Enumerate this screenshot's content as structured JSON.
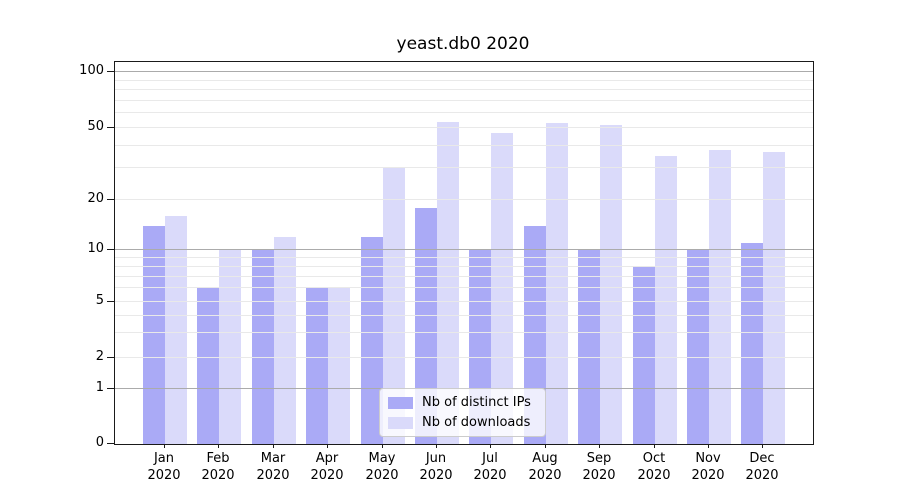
{
  "title": "yeast.db0 2020",
  "colors": {
    "bar_distinct_ips": "#aaaaf6",
    "bar_downloads": "#dadafa",
    "grid_major": "#ababab",
    "grid_minor": "#e9e9e9",
    "axis": "#1a1a1a",
    "legend_border": "#cccccc"
  },
  "chart_data": {
    "type": "bar",
    "title": "yeast.db0 2020",
    "categories": [
      "Jan 2020",
      "Feb 2020",
      "Mar 2020",
      "Apr 2020",
      "May 2020",
      "Jun 2020",
      "Jul 2020",
      "Aug 2020",
      "Sep 2020",
      "Oct 2020",
      "Nov 2020",
      "Dec 2020"
    ],
    "series": [
      {
        "name": "Nb of distinct IPs",
        "color": "#aaaaf6",
        "values": [
          14,
          6,
          10,
          6,
          12,
          18,
          10,
          14,
          10,
          8,
          10,
          11
        ]
      },
      {
        "name": "Nb of downloads",
        "color": "#dadafa",
        "values": [
          16,
          10,
          12,
          6,
          30,
          54,
          47,
          53,
          52,
          35,
          38,
          37
        ]
      }
    ],
    "xlabel": "",
    "ylabel": "",
    "y_ticks": [
      0,
      1,
      2,
      5,
      10,
      20,
      50,
      100
    ],
    "y_gridlines_major": [
      1,
      10,
      100
    ],
    "y_gridlines_minor": [
      2,
      3,
      4,
      5,
      6,
      7,
      8,
      9,
      20,
      30,
      40,
      50,
      60,
      70,
      80,
      90
    ],
    "y_scale": "quasi-log (symlog-like) with 0 at baseline",
    "y_scale_anchors": {
      "0": 0,
      "1": 0.144,
      "2": 0.2251,
      "5": 0.3717,
      "10": 0.5079,
      "20": 0.6387,
      "50": 0.8272,
      "100": 0.9738
    },
    "ylim": [
      0,
      115
    ],
    "grid": true,
    "legend": {
      "position": "lower-center",
      "entries": [
        "Nb of distinct IPs",
        "Nb of downloads"
      ]
    }
  }
}
